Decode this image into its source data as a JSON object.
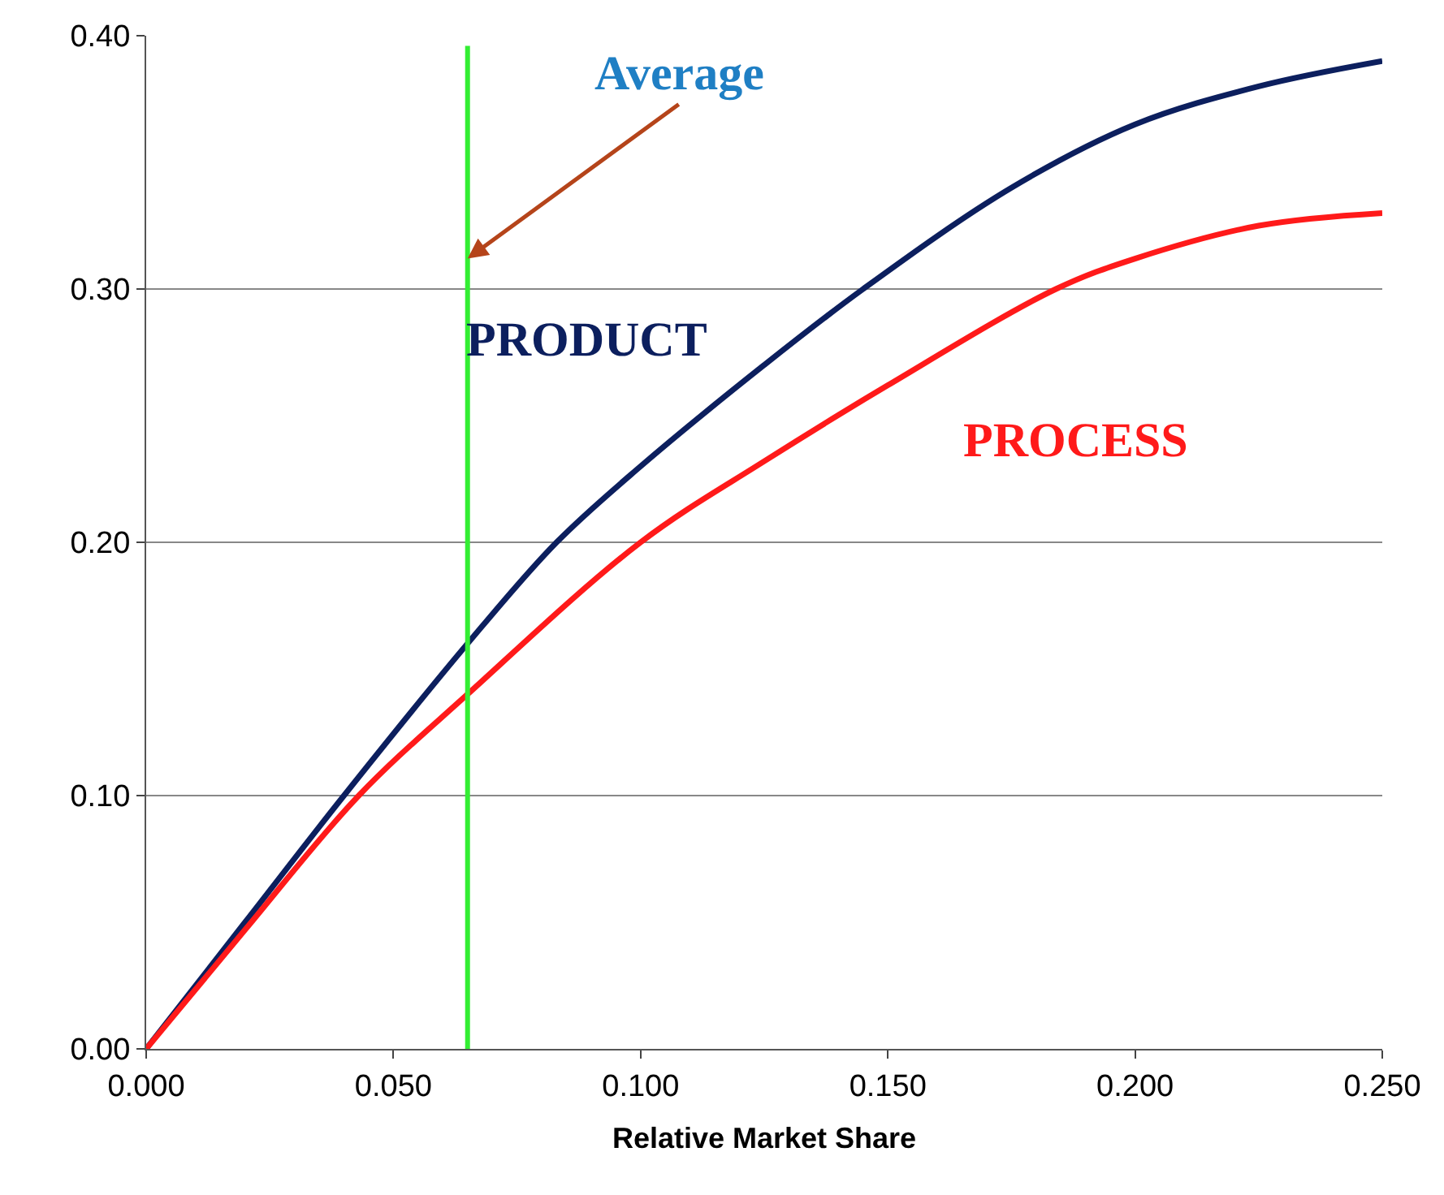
{
  "chart_data": {
    "type": "line",
    "xlabel": "Relative Market Share",
    "series": [
      {
        "name": "PRODUCT",
        "color": "#0c1f5e",
        "x": [
          0,
          0.02,
          0.04,
          0.065,
          0.083,
          0.1,
          0.125,
          0.145,
          0.175,
          0.2,
          0.225,
          0.25
        ],
        "values": [
          0,
          0.05,
          0.1,
          0.16,
          0.2,
          0.23,
          0.27,
          0.3,
          0.34,
          0.365,
          0.38,
          0.39
        ]
      },
      {
        "name": "PROCESS",
        "color": "#ff1a1a",
        "x": [
          0,
          0.02,
          0.043,
          0.065,
          0.1,
          0.125,
          0.15,
          0.184,
          0.2,
          0.225,
          0.25
        ],
        "values": [
          0,
          0.047,
          0.1,
          0.14,
          0.2,
          0.232,
          0.262,
          0.3,
          0.312,
          0.325,
          0.33
        ]
      }
    ],
    "ref_lines": [
      {
        "axis": "x",
        "value": 0.065,
        "label": "Average",
        "color": "#33ee33"
      }
    ],
    "xlim": [
      0,
      0.25
    ],
    "xticks": [
      {
        "value": 0,
        "label": "0.000"
      },
      {
        "value": 0.05,
        "label": "0.050"
      },
      {
        "value": 0.1,
        "label": "0.100"
      },
      {
        "value": 0.15,
        "label": "0.150"
      },
      {
        "value": 0.2,
        "label": "0.200"
      },
      {
        "value": 0.25,
        "label": "0.250"
      }
    ],
    "ylim": [
      0,
      0.4
    ],
    "yticks": [
      {
        "value": 0,
        "label": "0.00"
      },
      {
        "value": 0.1,
        "label": "0.10"
      },
      {
        "value": 0.2,
        "label": "0.20"
      },
      {
        "value": 0.3,
        "label": "0.30"
      },
      {
        "value": 0.4,
        "label": "0.40"
      }
    ],
    "grid": "y",
    "legend": false,
    "marker": "none",
    "line_style": "solid"
  }
}
